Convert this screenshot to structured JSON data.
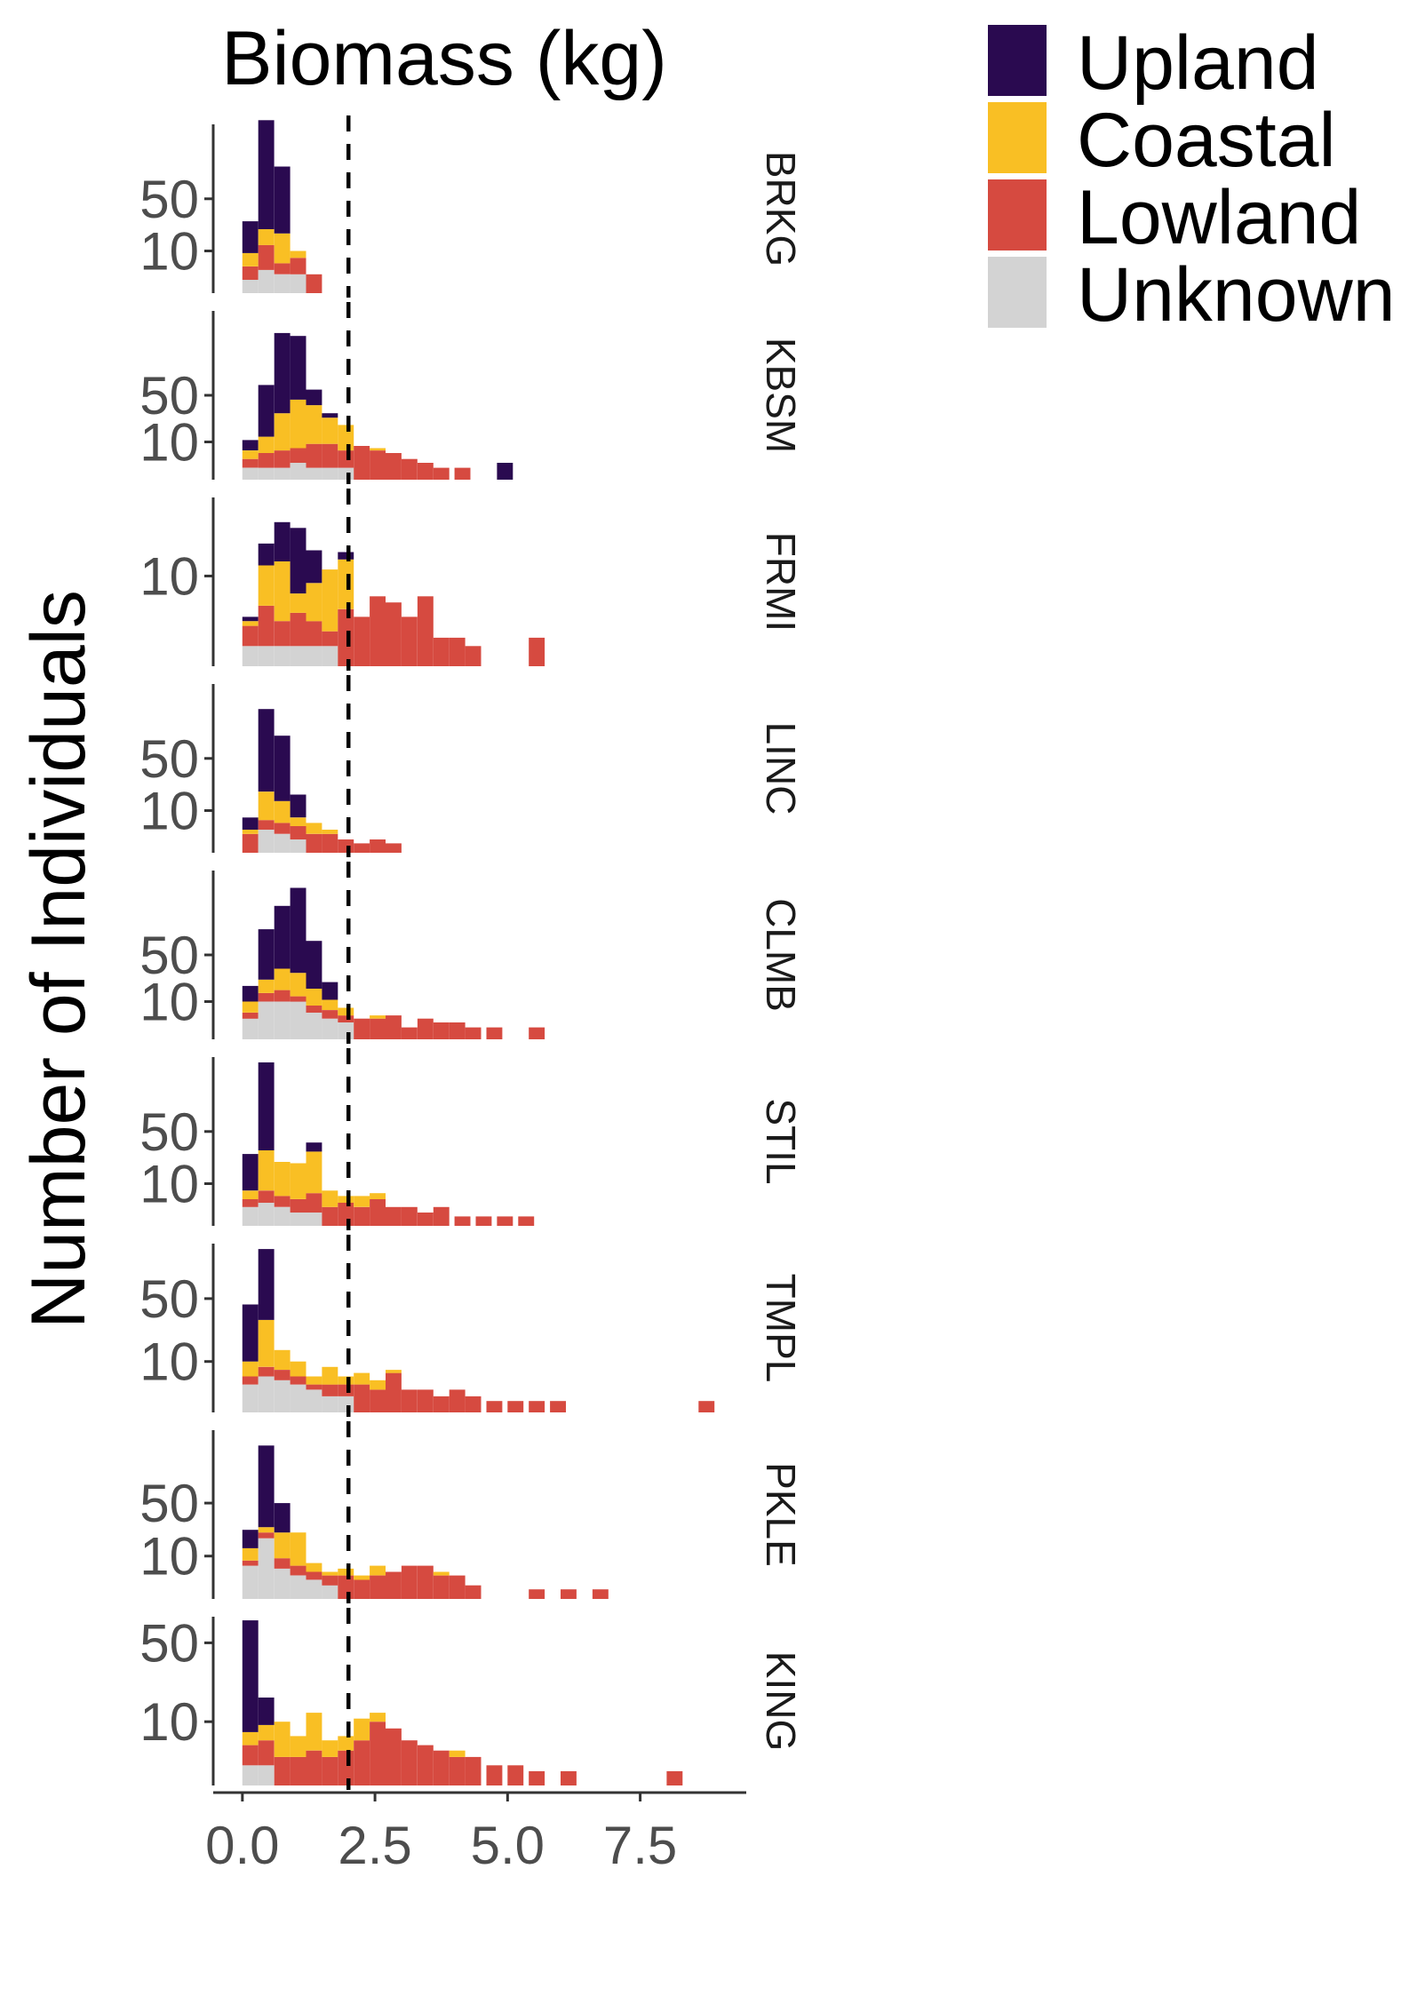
{
  "chart_data": {
    "type": "bar",
    "stacked": true,
    "faceted": true,
    "title": "Biomass (kg)",
    "ylabel": "Number of Individuals",
    "xlabel": "",
    "x_ticks": [
      "0.0",
      "2.5",
      "5.0",
      "7.5"
    ],
    "x_tick_values": [
      0,
      2.5,
      5,
      7.5
    ],
    "xlim": [
      -0.55,
      9.5
    ],
    "y_scale": "sqrt",
    "bin_width": 0.3,
    "reference_line": {
      "x": 2.0,
      "style": "dashed"
    },
    "legend": {
      "position": "top-right",
      "entries": [
        "Upland",
        "Coastal",
        "Lowland",
        "Unknown"
      ]
    },
    "colors": {
      "Upland": "#2a0a50",
      "Coastal": "#f9bf24",
      "Lowland": "#d64a40",
      "Unknown": "#d3d3d3"
    },
    "stack_order": [
      "Unknown",
      "Lowland",
      "Coastal",
      "Upland"
    ],
    "panels": [
      {
        "site": "BRKG",
        "ymax": 160,
        "y_ticks": [
          10,
          50
        ],
        "y_tick_labels": [
          "10",
          "50"
        ],
        "bins": [
          [
            0,
            1,
            3,
            5,
            20
          ],
          [
            0.3,
            3,
            10,
            10,
            145
          ],
          [
            0.6,
            2,
            3,
            15,
            70
          ],
          [
            0.9,
            2,
            5,
            3,
            0
          ],
          [
            1.2,
            0,
            2,
            0,
            0
          ]
        ]
      },
      {
        "site": "KBSM",
        "ymax": 200,
        "y_ticks": [
          10,
          50
        ],
        "y_tick_labels": [
          "10",
          "50"
        ],
        "bins": [
          [
            0,
            1,
            2,
            3,
            5
          ],
          [
            0.3,
            1,
            4,
            8,
            50
          ],
          [
            0.6,
            1,
            5,
            25,
            120
          ],
          [
            0.9,
            2,
            5,
            38,
            100
          ],
          [
            1.2,
            1,
            8,
            30,
            18
          ],
          [
            1.5,
            1,
            8,
            18,
            4
          ],
          [
            1.8,
            1,
            5,
            15,
            0
          ],
          [
            2.1,
            0,
            8,
            0,
            0
          ],
          [
            2.4,
            0,
            6,
            1,
            0
          ],
          [
            2.7,
            0,
            5,
            0,
            0
          ],
          [
            3.0,
            0,
            3,
            0,
            0
          ],
          [
            3.3,
            0,
            2,
            0,
            0
          ],
          [
            3.6,
            0,
            1,
            0,
            0
          ],
          [
            4.0,
            0,
            1,
            0,
            0
          ],
          [
            4.8,
            0,
            0,
            0,
            2
          ]
        ]
      },
      {
        "site": "FRMI",
        "ymax": 35,
        "y_ticks": [
          10
        ],
        "y_tick_labels": [
          "10"
        ],
        "bins": [
          [
            0,
            0.5,
            1.5,
            0.5,
            0.5
          ],
          [
            0.3,
            0.5,
            4,
            8,
            6
          ],
          [
            0.6,
            0.5,
            2,
            11,
            12
          ],
          [
            0.9,
            0.5,
            3,
            3,
            17
          ],
          [
            1.2,
            0.5,
            2,
            6,
            8
          ],
          [
            1.5,
            0.5,
            1,
            10,
            0
          ],
          [
            1.8,
            0,
            4,
            10,
            2
          ],
          [
            2.1,
            0,
            3,
            0,
            0
          ],
          [
            2.4,
            0,
            6,
            0,
            0
          ],
          [
            2.7,
            0,
            5,
            0,
            0
          ],
          [
            3.0,
            0,
            3,
            0,
            0
          ],
          [
            3.3,
            0,
            6,
            0,
            0
          ],
          [
            3.6,
            0,
            1,
            0,
            0
          ],
          [
            3.9,
            0,
            1,
            0,
            0
          ],
          [
            4.2,
            0,
            0.5,
            0,
            0
          ],
          [
            5.4,
            0,
            1,
            0,
            0
          ]
        ]
      },
      {
        "site": "LINC",
        "ymax": 160,
        "y_ticks": [
          10,
          50
        ],
        "y_tick_labels": [
          "10",
          "50"
        ],
        "bins": [
          [
            0,
            0,
            2,
            1,
            4
          ],
          [
            0.3,
            3,
            3,
            15,
            95
          ],
          [
            0.6,
            2,
            3,
            10,
            62
          ],
          [
            0.9,
            1,
            3,
            3,
            12
          ],
          [
            1.2,
            0,
            2,
            3,
            0
          ],
          [
            1.5,
            0,
            2,
            1,
            0
          ],
          [
            1.8,
            0,
            1,
            0,
            0
          ],
          [
            2.1,
            0,
            0.5,
            0,
            0
          ],
          [
            2.4,
            0,
            1,
            0,
            0
          ],
          [
            2.7,
            0,
            0.5,
            0,
            0
          ]
        ]
      },
      {
        "site": "CLMB",
        "ymax": 200,
        "y_ticks": [
          10,
          50
        ],
        "y_tick_labels": [
          "10",
          "50"
        ],
        "bins": [
          [
            0,
            3,
            2,
            5,
            10
          ],
          [
            0.3,
            10,
            5,
            10,
            60
          ],
          [
            0.6,
            10,
            7,
            18,
            90
          ],
          [
            0.9,
            10,
            3,
            18,
            130
          ],
          [
            1.2,
            5,
            3,
            10,
            50
          ],
          [
            1.5,
            3,
            3,
            5,
            12
          ],
          [
            1.8,
            2,
            2,
            3,
            0
          ],
          [
            2.1,
            0,
            3,
            0,
            0
          ],
          [
            2.4,
            0,
            3,
            1,
            0
          ],
          [
            2.7,
            0,
            4,
            0,
            0
          ],
          [
            3.0,
            0,
            1,
            0,
            0
          ],
          [
            3.3,
            0,
            3,
            0,
            0
          ],
          [
            3.6,
            0,
            2,
            0,
            0
          ],
          [
            3.9,
            0,
            2,
            0,
            0
          ],
          [
            4.2,
            0,
            1,
            0,
            0
          ],
          [
            4.6,
            0,
            1,
            0,
            0
          ],
          [
            5.4,
            0,
            1,
            0,
            0
          ]
        ]
      },
      {
        "site": "STIL",
        "ymax": 160,
        "y_ticks": [
          10,
          50
        ],
        "y_tick_labels": [
          "10",
          "50"
        ],
        "bins": [
          [
            0,
            2,
            2,
            3,
            22
          ],
          [
            0.3,
            3,
            4,
            25,
            118
          ],
          [
            0.6,
            2,
            3,
            18,
            0
          ],
          [
            0.9,
            1,
            3,
            18,
            0
          ],
          [
            1.2,
            1,
            5,
            25,
            8
          ],
          [
            1.5,
            0,
            2,
            5,
            0
          ],
          [
            1.8,
            0,
            3,
            2,
            0
          ],
          [
            2.1,
            0,
            2,
            3,
            0
          ],
          [
            2.4,
            0,
            4,
            2,
            0
          ],
          [
            2.7,
            0,
            2,
            0,
            0
          ],
          [
            3.0,
            0,
            2,
            0,
            0
          ],
          [
            3.3,
            0,
            1,
            0,
            0
          ],
          [
            3.6,
            0,
            2,
            0,
            0
          ],
          [
            4.0,
            0,
            0.5,
            0,
            0
          ],
          [
            4.4,
            0,
            0.5,
            0,
            0
          ],
          [
            4.8,
            0,
            0.5,
            0,
            0
          ],
          [
            5.2,
            0,
            0.5,
            0,
            0
          ]
        ]
      },
      {
        "site": "TMPL",
        "ymax": 110,
        "y_ticks": [
          10,
          50
        ],
        "y_tick_labels": [
          "10",
          "50"
        ],
        "bins": [
          [
            0,
            3,
            2,
            5,
            35
          ],
          [
            0.3,
            5,
            3,
            25,
            70
          ],
          [
            0.6,
            4,
            3,
            8,
            0
          ],
          [
            0.9,
            3,
            2,
            5,
            0
          ],
          [
            1.2,
            2,
            1,
            2,
            0
          ],
          [
            1.5,
            1,
            2,
            5,
            0
          ],
          [
            1.8,
            1,
            2,
            2,
            0
          ],
          [
            2.1,
            0,
            3,
            3,
            0
          ],
          [
            2.4,
            0,
            2,
            2,
            0
          ],
          [
            2.7,
            0,
            6,
            1,
            0
          ],
          [
            3.0,
            0,
            2,
            0,
            0
          ],
          [
            3.3,
            0,
            2,
            0,
            0
          ],
          [
            3.6,
            0,
            1,
            0,
            0
          ],
          [
            3.9,
            0,
            2,
            0,
            0
          ],
          [
            4.2,
            0,
            1,
            0,
            0
          ],
          [
            4.6,
            0,
            0.5,
            0,
            0
          ],
          [
            5.0,
            0,
            0.5,
            0,
            0
          ],
          [
            5.4,
            0,
            0.5,
            0,
            0
          ],
          [
            5.8,
            0,
            0.5,
            0,
            0
          ],
          [
            8.6,
            0,
            0.5,
            0,
            0
          ]
        ]
      },
      {
        "site": "PKLE",
        "ymax": 155,
        "y_ticks": [
          10,
          50
        ],
        "y_tick_labels": [
          "10",
          "50"
        ],
        "bins": [
          [
            0,
            6,
            2,
            6,
            12
          ],
          [
            0.3,
            20,
            4,
            4,
            100
          ],
          [
            0.6,
            5,
            4,
            15,
            26
          ],
          [
            0.9,
            3,
            3,
            18,
            0
          ],
          [
            1.2,
            2,
            2,
            3,
            0
          ],
          [
            1.5,
            1,
            2,
            1,
            0
          ],
          [
            1.8,
            0,
            3,
            2,
            0
          ],
          [
            2.1,
            0,
            2,
            1,
            0
          ],
          [
            2.4,
            0,
            3,
            3,
            0
          ],
          [
            2.7,
            0,
            4,
            0,
            0
          ],
          [
            3.0,
            0,
            6,
            0,
            0
          ],
          [
            3.3,
            0,
            6,
            0,
            0
          ],
          [
            3.6,
            0,
            3,
            1,
            0
          ],
          [
            3.9,
            0,
            3,
            0,
            0
          ],
          [
            4.2,
            0,
            1,
            0,
            0
          ],
          [
            5.4,
            0,
            0.5,
            0,
            0
          ],
          [
            6.0,
            0,
            0.5,
            0,
            0
          ],
          [
            6.6,
            0,
            0.5,
            0,
            0
          ]
        ]
      },
      {
        "site": "KING",
        "ymax": 70,
        "y_ticks": [
          10,
          50
        ],
        "y_tick_labels": [
          "10",
          "50"
        ],
        "bins": [
          [
            0,
            1,
            3,
            3,
            60
          ],
          [
            0.3,
            1,
            4,
            4,
            10
          ],
          [
            0.6,
            0,
            2,
            8,
            0
          ],
          [
            0.9,
            0,
            2,
            4,
            0
          ],
          [
            1.2,
            0,
            3,
            10,
            0
          ],
          [
            1.5,
            0,
            2,
            3,
            0
          ],
          [
            1.8,
            0,
            3,
            3,
            0
          ],
          [
            2.1,
            0,
            5,
            6,
            0
          ],
          [
            2.4,
            0,
            10,
            3,
            0
          ],
          [
            2.7,
            0,
            8,
            0,
            0
          ],
          [
            3.0,
            0,
            5,
            0,
            0
          ],
          [
            3.3,
            0,
            4,
            0,
            0
          ],
          [
            3.6,
            0,
            3,
            0,
            0
          ],
          [
            3.9,
            0,
            2,
            1,
            0
          ],
          [
            4.2,
            0,
            2,
            0,
            0
          ],
          [
            4.6,
            0,
            1,
            0,
            0
          ],
          [
            5.0,
            0,
            1,
            0,
            0
          ],
          [
            5.4,
            0,
            0.5,
            0,
            0
          ],
          [
            6.0,
            0,
            0.5,
            0,
            0
          ],
          [
            8.0,
            0,
            0.5,
            0,
            0
          ]
        ]
      }
    ]
  }
}
